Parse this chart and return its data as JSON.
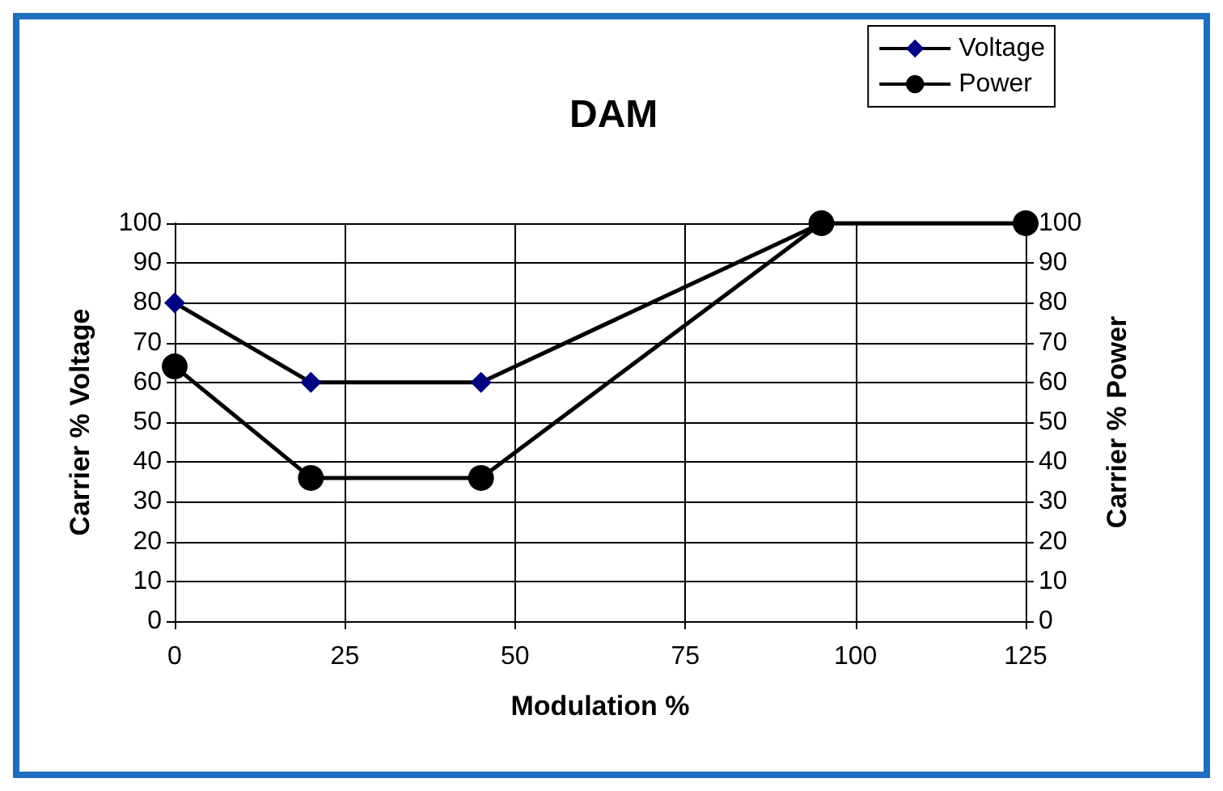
{
  "chart_data": {
    "type": "line",
    "title": "DAM",
    "xlabel": "Modulation %",
    "ylabel": "Carrier % Voltage",
    "y2label": "Carrier % Power",
    "x": [
      0,
      20,
      45,
      95,
      125
    ],
    "series": [
      {
        "name": "Voltage",
        "color": "#000080",
        "marker": "diamond",
        "values": [
          80,
          60,
          60,
          100,
          100
        ]
      },
      {
        "name": "Power",
        "color": "#000000",
        "marker": "circle",
        "axis": "y2",
        "values": [
          64,
          36,
          36,
          100,
          100
        ]
      }
    ],
    "xlim": [
      0,
      125
    ],
    "xticks": [
      0,
      25,
      50,
      75,
      100,
      125
    ],
    "ylim": [
      0,
      100
    ],
    "yticks": [
      0,
      10,
      20,
      30,
      40,
      50,
      60,
      70,
      80,
      90,
      100
    ],
    "y2lim": [
      0,
      100
    ],
    "y2ticks": [
      0,
      10,
      20,
      30,
      40,
      50,
      60,
      70,
      80,
      90,
      100
    ],
    "grid": true,
    "legend": "top right",
    "line_style": "solid"
  }
}
